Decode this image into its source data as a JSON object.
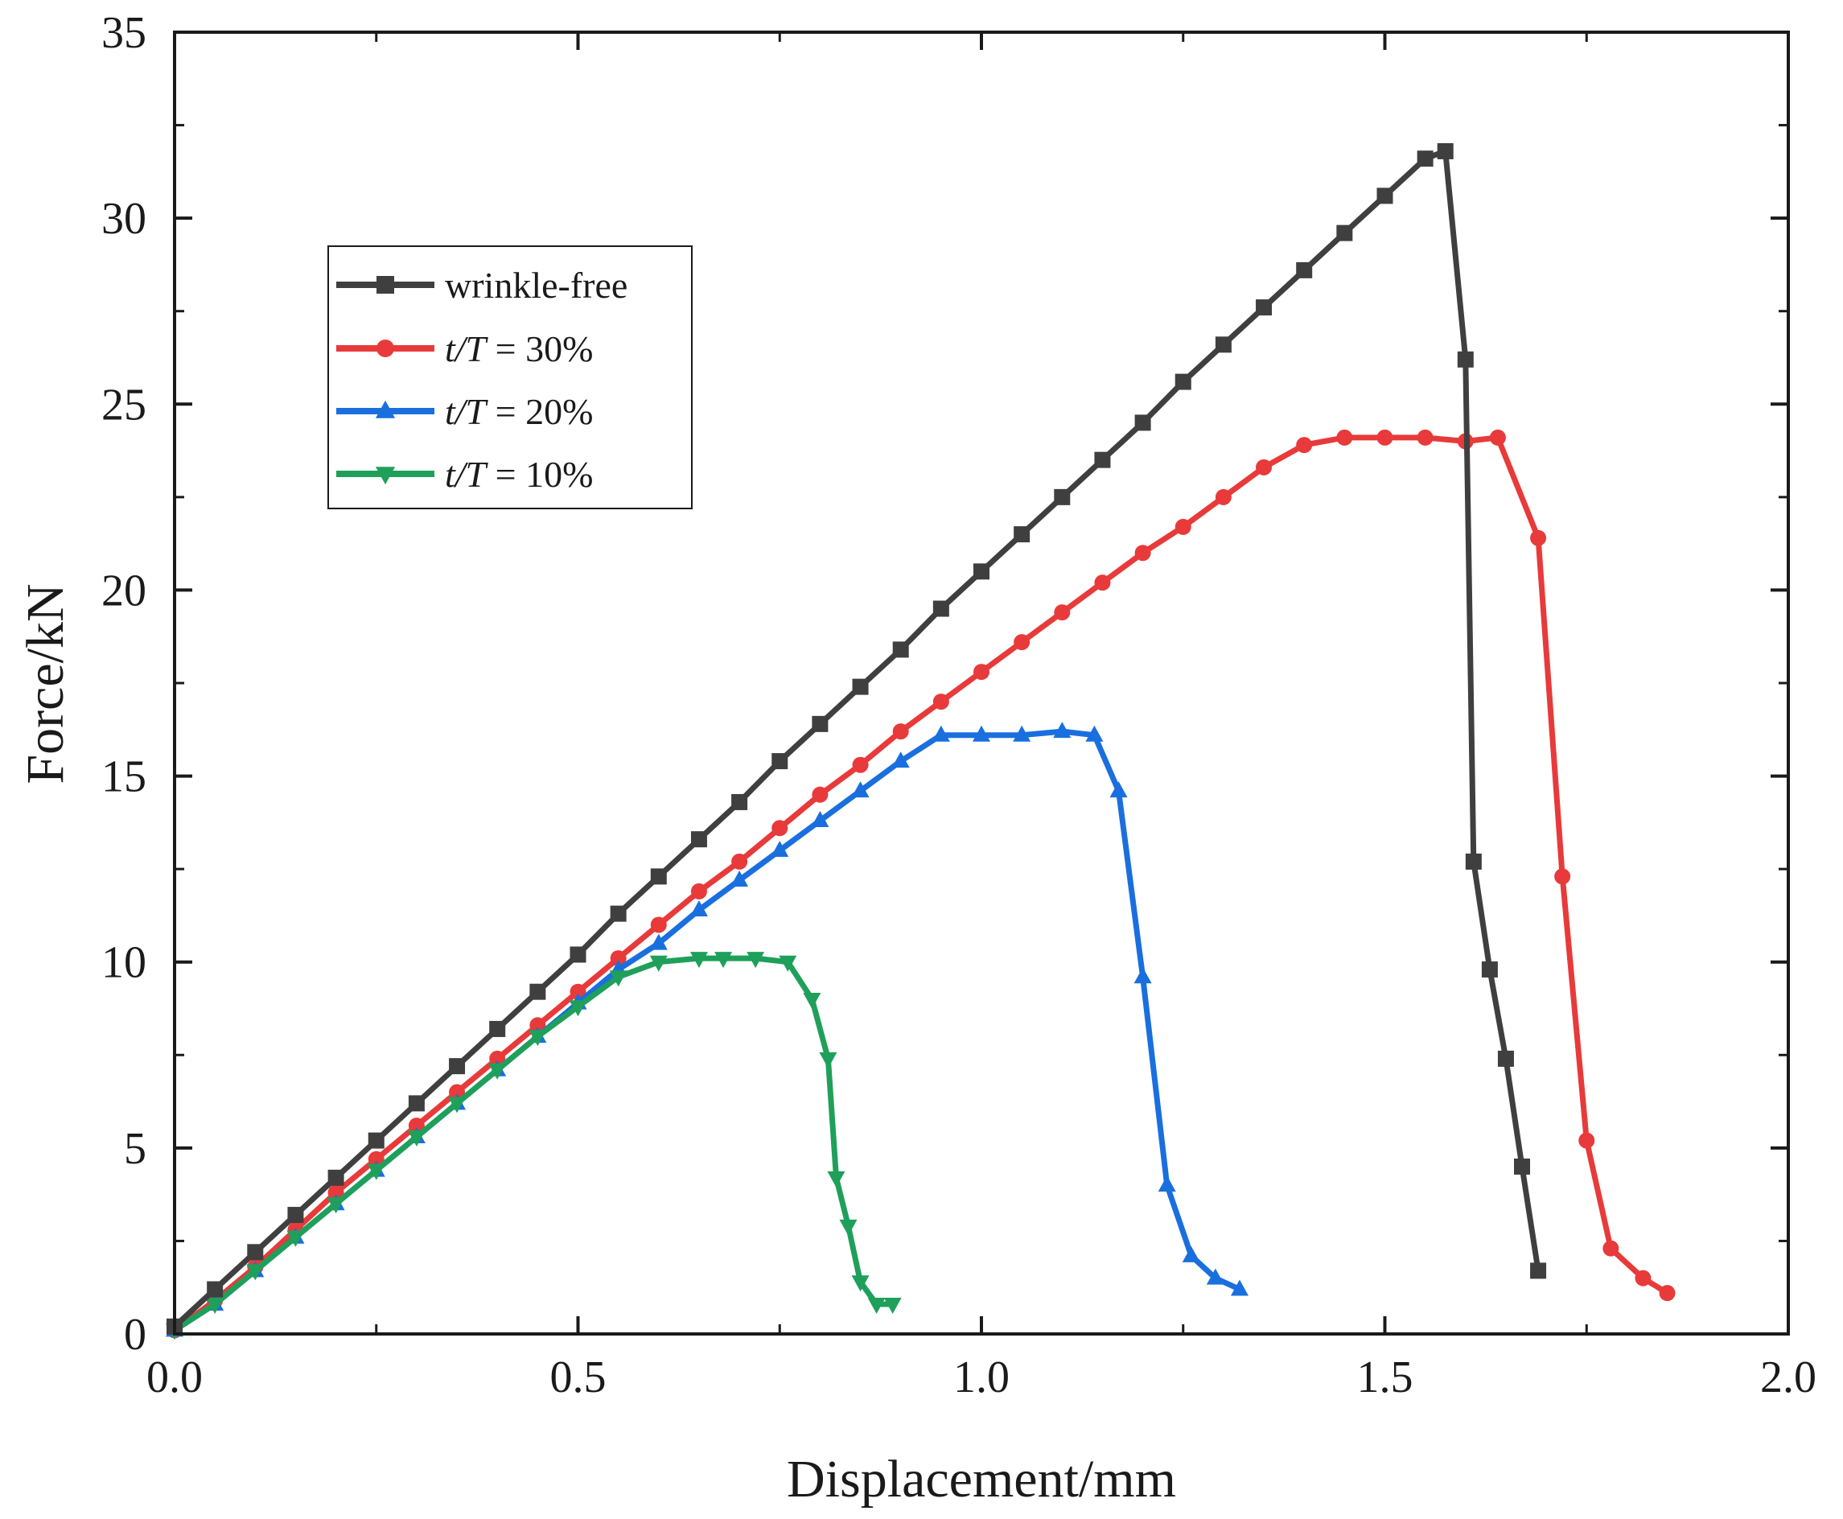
{
  "chart_data": {
    "type": "line",
    "title": "",
    "xlabel": "Displacement/mm",
    "ylabel": "Force/kN",
    "xlim": [
      0.0,
      2.0
    ],
    "ylim": [
      0,
      35
    ],
    "x_ticks": [
      "0.0",
      "0.5",
      "1.0",
      "1.5",
      "2.0"
    ],
    "y_ticks": [
      "0",
      "5",
      "10",
      "15",
      "20",
      "25",
      "30",
      "35"
    ],
    "legend_position": "upper-left",
    "series": [
      {
        "name": "wrinkle-free",
        "color": "#3f3f3f",
        "marker": "square",
        "x": [
          0.0,
          0.05,
          0.1,
          0.15,
          0.2,
          0.25,
          0.3,
          0.35,
          0.4,
          0.45,
          0.5,
          0.55,
          0.6,
          0.65,
          0.7,
          0.75,
          0.8,
          0.85,
          0.9,
          0.95,
          1.0,
          1.05,
          1.1,
          1.15,
          1.2,
          1.25,
          1.3,
          1.35,
          1.4,
          1.45,
          1.5,
          1.55,
          1.575,
          1.6,
          1.61,
          1.63,
          1.65,
          1.67,
          1.69
        ],
        "y": [
          0.2,
          1.2,
          2.2,
          3.2,
          4.2,
          5.2,
          6.2,
          7.2,
          8.2,
          9.2,
          10.2,
          11.3,
          12.3,
          13.3,
          14.3,
          15.4,
          16.4,
          17.4,
          18.4,
          19.5,
          20.5,
          21.5,
          22.5,
          23.5,
          24.5,
          25.6,
          26.6,
          27.6,
          28.6,
          29.6,
          30.6,
          31.6,
          31.8,
          26.2,
          12.7,
          9.8,
          7.4,
          4.5,
          1.7
        ]
      },
      {
        "name": "t/T = 30%",
        "color": "#e83a3a",
        "marker": "circle",
        "x": [
          0.0,
          0.05,
          0.1,
          0.15,
          0.2,
          0.25,
          0.3,
          0.35,
          0.4,
          0.45,
          0.5,
          0.55,
          0.6,
          0.65,
          0.7,
          0.75,
          0.8,
          0.85,
          0.9,
          0.95,
          1.0,
          1.05,
          1.1,
          1.15,
          1.2,
          1.25,
          1.3,
          1.35,
          1.4,
          1.45,
          1.5,
          1.55,
          1.6,
          1.64,
          1.69,
          1.72,
          1.75,
          1.78,
          1.82,
          1.85
        ],
        "y": [
          0.1,
          0.9,
          1.8,
          2.8,
          3.8,
          4.7,
          5.6,
          6.5,
          7.4,
          8.3,
          9.2,
          10.1,
          11.0,
          11.9,
          12.7,
          13.6,
          14.5,
          15.3,
          16.2,
          17.0,
          17.8,
          18.6,
          19.4,
          20.2,
          21.0,
          21.7,
          22.5,
          23.3,
          23.9,
          24.1,
          24.1,
          24.1,
          24.0,
          24.1,
          21.4,
          12.3,
          5.2,
          2.3,
          1.5,
          1.1
        ]
      },
      {
        "name": "t/T = 20%",
        "color": "#1a6fdf",
        "marker": "triangle-up",
        "x": [
          0.0,
          0.05,
          0.1,
          0.15,
          0.2,
          0.25,
          0.3,
          0.35,
          0.4,
          0.45,
          0.5,
          0.55,
          0.6,
          0.65,
          0.7,
          0.75,
          0.8,
          0.85,
          0.9,
          0.95,
          1.0,
          1.05,
          1.1,
          1.14,
          1.17,
          1.2,
          1.23,
          1.26,
          1.29,
          1.32
        ],
        "y": [
          0.1,
          0.8,
          1.7,
          2.6,
          3.5,
          4.4,
          5.3,
          6.2,
          7.1,
          8.0,
          8.9,
          9.8,
          10.5,
          11.4,
          12.2,
          13.0,
          13.8,
          14.6,
          15.4,
          16.1,
          16.1,
          16.1,
          16.2,
          16.1,
          14.6,
          9.6,
          4.0,
          2.1,
          1.5,
          1.2
        ]
      },
      {
        "name": "t/T = 10%",
        "color": "#1fa05a",
        "marker": "triangle-down",
        "x": [
          0.0,
          0.05,
          0.1,
          0.15,
          0.2,
          0.25,
          0.3,
          0.35,
          0.4,
          0.45,
          0.5,
          0.55,
          0.6,
          0.65,
          0.68,
          0.72,
          0.76,
          0.79,
          0.81,
          0.82,
          0.835,
          0.85,
          0.87,
          0.89
        ],
        "y": [
          0.1,
          0.8,
          1.7,
          2.6,
          3.5,
          4.4,
          5.3,
          6.2,
          7.1,
          8.0,
          8.8,
          9.6,
          10.0,
          10.1,
          10.1,
          10.1,
          10.0,
          9.0,
          7.4,
          4.2,
          2.9,
          1.4,
          0.8,
          0.8
        ]
      }
    ]
  },
  "legend": {
    "items": [
      {
        "prefix": "",
        "suffix": "wrinkle-free"
      },
      {
        "prefix": "t/T",
        "suffix": " = 30%"
      },
      {
        "prefix": "t/T",
        "suffix": " = 20%"
      },
      {
        "prefix": "t/T",
        "suffix": " = 10%"
      }
    ]
  }
}
